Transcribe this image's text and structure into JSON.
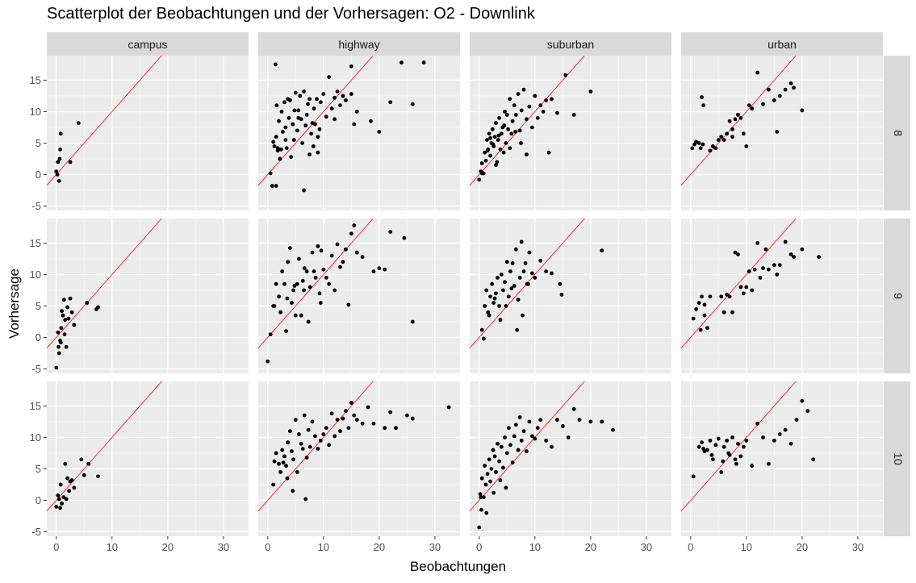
{
  "chart_data": {
    "type": "scatter",
    "title": "Scatterplot der Beobachtungen und der Vorhersagen: O2 - Downlink",
    "xlabel": "Beobachtungen",
    "ylabel": "Vorhersage",
    "xlim": [
      -1.7,
      34.5
    ],
    "ylim": [
      -5.7,
      18.9
    ],
    "x_ticks": [
      0,
      10,
      20,
      30
    ],
    "y_ticks": [
      -5,
      0,
      5,
      10,
      15
    ],
    "grid": true,
    "reference_line": {
      "type": "identity",
      "color": "#ff0000"
    },
    "point_color": "#000000",
    "facet_cols": [
      "campus",
      "highway",
      "suburban",
      "urban"
    ],
    "facet_rows": [
      "8",
      "9",
      "10"
    ],
    "panels": [
      {
        "row": "8",
        "col": "campus",
        "x": [
          0,
          0.2,
          0.5,
          0.3,
          0.6,
          0.7,
          0.8,
          4,
          2.5
        ],
        "y": [
          0.5,
          0,
          -1,
          2,
          2.5,
          4,
          6.5,
          8.2,
          2
        ]
      },
      {
        "row": "8",
        "col": "highway",
        "x": [
          0.5,
          0.8,
          1,
          1.2,
          1.4,
          1.5,
          1.6,
          1.8,
          2,
          2.2,
          2.4,
          2.5,
          2.7,
          3,
          3.2,
          3.4,
          3.6,
          3.8,
          4,
          4.2,
          4.5,
          4.7,
          5,
          5.3,
          5.5,
          5.8,
          6,
          6.2,
          6.5,
          6.8,
          7,
          7.2,
          7.5,
          7.8,
          8,
          8.3,
          8.5,
          8.8,
          9,
          9.3,
          9.5,
          10,
          10.5,
          11,
          11.5,
          12,
          12.5,
          13,
          13.5,
          14,
          15,
          15.5,
          16,
          18.5,
          20,
          22,
          24,
          26,
          28,
          6.5,
          1.5,
          1.8,
          2.2,
          3.2,
          5.5,
          7.5,
          9,
          12,
          15,
          4.8,
          8.2
        ],
        "y": [
          0.2,
          -1.8,
          5.2,
          4.5,
          17.5,
          6,
          11,
          3.8,
          8.5,
          2.5,
          4,
          10,
          6.8,
          11.5,
          7.5,
          4.2,
          12,
          9,
          11.8,
          2.8,
          8,
          5.5,
          13,
          7,
          10.2,
          12.5,
          8.8,
          5,
          13.2,
          7.8,
          9.5,
          11.2,
          12,
          6.5,
          8.2,
          10.5,
          8,
          12,
          3.5,
          7.2,
          11.5,
          12.8,
          9.2,
          15.5,
          10.5,
          12.2,
          13.2,
          11,
          12.5,
          11.8,
          17.2,
          8,
          10,
          8.5,
          6.8,
          11.5,
          17.8,
          11.2,
          17.8,
          -2.5,
          -1.8,
          4.2,
          2.5,
          5.5,
          9,
          3.2,
          6,
          8.8,
          12.8,
          10.2,
          4.5
        ]
      },
      {
        "row": "8",
        "col": "suburban",
        "x": [
          0,
          0.3,
          0.5,
          0.8,
          1,
          1.2,
          1.4,
          1.6,
          1.8,
          2,
          2.2,
          2.4,
          2.6,
          2.8,
          3,
          3.2,
          3.4,
          3.6,
          3.8,
          4,
          4.2,
          4.4,
          4.6,
          4.8,
          5,
          5.2,
          5.5,
          5.8,
          6,
          6.3,
          6.6,
          7,
          7.3,
          7.6,
          8,
          8.5,
          9,
          9.5,
          10,
          10.5,
          11,
          11.5,
          12,
          12.5,
          13,
          14,
          15.5,
          17,
          20,
          0.5,
          1.5,
          2.5,
          3.5,
          4.5,
          5.5,
          6.5,
          7.5,
          8.5,
          3,
          2
        ],
        "y": [
          -0.8,
          0.5,
          1.8,
          0.2,
          3.5,
          2.2,
          5.5,
          4,
          6.5,
          3,
          5,
          7.2,
          4.5,
          6,
          8.2,
          2,
          5.5,
          9,
          4,
          6.5,
          7.5,
          3.5,
          10,
          5,
          9.5,
          7.2,
          12,
          6.5,
          8.5,
          11,
          9.5,
          12.8,
          7,
          10.2,
          13.5,
          8.8,
          10.8,
          7.5,
          12.5,
          9,
          11,
          10,
          11.8,
          3.5,
          12,
          9.8,
          15.8,
          9.5,
          13.2,
          0.2,
          3.8,
          4.8,
          6.2,
          7.8,
          4.2,
          6.8,
          5,
          3.2,
          1.5,
          5.8
        ]
      },
      {
        "row": "8",
        "col": "urban",
        "x": [
          0.3,
          0.7,
          1,
          1.5,
          2,
          2.3,
          3.5,
          4,
          4.5,
          5,
          5.5,
          6,
          6.5,
          7,
          7.5,
          8,
          8.5,
          9,
          9.5,
          10,
          10.5,
          11,
          12,
          13,
          14,
          15,
          16,
          17,
          18,
          18.5,
          20,
          1.8,
          2.2,
          15.5,
          7.5
        ],
        "y": [
          4.2,
          4.8,
          5.2,
          5,
          12.3,
          11,
          3.8,
          4.5,
          4.2,
          5.5,
          6,
          5.5,
          6.5,
          8.5,
          6,
          8.8,
          9.5,
          9,
          6.5,
          4.5,
          11,
          10.5,
          16.2,
          11.2,
          13.5,
          11.8,
          12.5,
          13.5,
          14.5,
          13.8,
          10.2,
          4.2,
          4.8,
          6.8,
          7.2
        ]
      },
      {
        "row": "9",
        "col": "campus",
        "x": [
          0,
          0.3,
          0.5,
          0.7,
          0.9,
          1,
          1.2,
          1.4,
          1.6,
          1.8,
          2,
          2.2,
          2.5,
          2.8,
          3.2,
          5.5,
          7.2,
          7.5,
          0.4,
          0.8,
          1.5
        ],
        "y": [
          -4.8,
          0.8,
          -2.5,
          -0.5,
          1.5,
          4.2,
          3.5,
          6,
          2.8,
          -1.5,
          4.8,
          3,
          6.2,
          4,
          2,
          5.5,
          4.5,
          4.8,
          -1.5,
          -0.8,
          0.5
        ]
      },
      {
        "row": "9",
        "col": "highway",
        "x": [
          0,
          0.5,
          1,
          1.5,
          2,
          2.3,
          2.6,
          3,
          3.3,
          3.6,
          4,
          4.3,
          4.6,
          5,
          5.3,
          5.6,
          6,
          6.3,
          6.6,
          7,
          7.3,
          7.6,
          8,
          8.3,
          8.6,
          9,
          9.3,
          9.6,
          10,
          10.5,
          11,
          11.5,
          12,
          12.5,
          13,
          13.5,
          14,
          14.5,
          15,
          15.5,
          16,
          17,
          19,
          20,
          21,
          22,
          24.5,
          26,
          1.2,
          3.5,
          6.5,
          9.5,
          4.8
        ],
        "y": [
          -3.8,
          0.5,
          5,
          8.5,
          6.5,
          4,
          10.5,
          8.5,
          1,
          12,
          14.2,
          5.5,
          7.5,
          3.5,
          8.5,
          12.5,
          3.5,
          9,
          11,
          10.5,
          2.5,
          8,
          13.5,
          10.5,
          9.5,
          14.5,
          7,
          13.8,
          10.8,
          9.5,
          8.5,
          13,
          7.5,
          14.8,
          11.2,
          12,
          14,
          5.2,
          16.5,
          17.8,
          13.5,
          12.8,
          10.5,
          11,
          10.8,
          16.8,
          15.8,
          2.5,
          5,
          6.2,
          7.5,
          5.5,
          8.2
        ]
      },
      {
        "row": "9",
        "col": "suburban",
        "x": [
          0.5,
          1,
          1.3,
          1.6,
          2,
          2.3,
          2.6,
          3,
          3.3,
          3.6,
          4,
          4.3,
          4.6,
          5,
          5.3,
          5.6,
          6,
          6.3,
          6.6,
          7,
          7.3,
          7.6,
          8,
          8.3,
          8.6,
          9,
          9.5,
          10,
          11,
          12,
          13,
          14.5,
          22,
          0.8,
          1.8,
          2.8,
          3.8,
          4.8,
          5.8,
          6.8,
          7.8,
          8.8,
          14.8
        ],
        "y": [
          1.2,
          5,
          7.5,
          4,
          6.5,
          8.5,
          5.5,
          7,
          9.5,
          5,
          10,
          7.5,
          8.8,
          12,
          6.5,
          10.5,
          11.8,
          8.2,
          14,
          6,
          9.5,
          15.2,
          10.5,
          11.8,
          8.5,
          13.5,
          10.2,
          9.5,
          12.2,
          10.5,
          10.2,
          8.5,
          13.8,
          -0.2,
          3.5,
          6.2,
          2.8,
          5,
          7.8,
          1.2,
          3.5,
          8.5,
          6.8
        ]
      },
      {
        "row": "9",
        "col": "urban",
        "x": [
          0.5,
          1,
          1.5,
          2,
          2.5,
          3,
          3.5,
          5.5,
          6,
          6.5,
          7,
          7.5,
          8,
          8.5,
          9,
          9.5,
          10,
          10.5,
          11,
          11.5,
          12,
          12.5,
          13,
          13.5,
          14,
          15,
          15.5,
          16,
          17,
          18,
          18.5,
          20,
          23,
          1.8,
          2.5
        ],
        "y": [
          3,
          4.5,
          5.5,
          6.5,
          3.5,
          1.5,
          6.5,
          6.5,
          4,
          6.8,
          6.5,
          4,
          13.5,
          13.2,
          8,
          7,
          8,
          10.5,
          7.5,
          10.8,
          15,
          9.5,
          11,
          14,
          10.8,
          11.5,
          10,
          11.5,
          15.2,
          13.2,
          12.8,
          14,
          12.8,
          1.2,
          5.2
        ]
      },
      {
        "row": "10",
        "col": "campus",
        "x": [
          0,
          0.3,
          0.5,
          0.8,
          1,
          1.3,
          1.6,
          2,
          2.3,
          2.8,
          3.2,
          4.5,
          5,
          5.8,
          7.5,
          0.7,
          1.8,
          2.5
        ],
        "y": [
          -1,
          0.8,
          0.2,
          2.5,
          -0.5,
          0.5,
          5.8,
          3.5,
          1.5,
          3.2,
          2,
          6.5,
          4,
          5.8,
          3.8,
          -1.2,
          0.2,
          3
        ]
      },
      {
        "row": "10",
        "col": "highway",
        "x": [
          1,
          1.2,
          1.5,
          2,
          2.3,
          2.6,
          3,
          3.3,
          3.6,
          4,
          4.3,
          4.6,
          5,
          5.3,
          5.6,
          6,
          6.3,
          6.6,
          7,
          7.3,
          7.6,
          8,
          8.5,
          9,
          9.5,
          10,
          10.5,
          11,
          11.5,
          12,
          12.5,
          13,
          13.5,
          14,
          14.5,
          15,
          15.5,
          16,
          17,
          18,
          19,
          21,
          22,
          23,
          25,
          26,
          32.5,
          4.5,
          6.8,
          3.5,
          2.8
        ],
        "y": [
          2.5,
          6.2,
          7.5,
          5.8,
          4.5,
          8,
          7,
          5.5,
          9.2,
          11,
          7.8,
          6.5,
          12.8,
          4.5,
          10.5,
          9,
          8.2,
          13.5,
          6.8,
          11.2,
          8.5,
          12.5,
          10.2,
          8.2,
          9.5,
          10.5,
          11.5,
          8.8,
          13.8,
          10.2,
          12.8,
          11,
          13,
          14.2,
          11.5,
          15.5,
          13.5,
          12.8,
          12.2,
          14.8,
          12.2,
          11.5,
          14,
          11.5,
          13.5,
          13,
          14.8,
          1.5,
          0.2,
          3.5,
          6
        ]
      },
      {
        "row": "10",
        "col": "suburban",
        "x": [
          0,
          0.2,
          0.5,
          0.8,
          1,
          1.2,
          1.5,
          1.8,
          2,
          2.2,
          2.5,
          2.8,
          3,
          3.3,
          3.6,
          4,
          4.3,
          4.6,
          5,
          5.3,
          5.6,
          6,
          6.3,
          6.6,
          7,
          7.3,
          7.6,
          8,
          8.5,
          9,
          9.5,
          10,
          10.5,
          11,
          12,
          13,
          14,
          15,
          16,
          17,
          18,
          20,
          22,
          24,
          0.4,
          1.3,
          2.6,
          3.8,
          4.8,
          0.3
        ],
        "y": [
          -4.3,
          1,
          3.5,
          0.5,
          5.5,
          2.5,
          4.2,
          6.5,
          3,
          5,
          8,
          7,
          4.5,
          9,
          6.2,
          8.5,
          5.2,
          10,
          7.5,
          11.5,
          8.8,
          6,
          10.2,
          12,
          8,
          13.2,
          9.5,
          11,
          7.8,
          12.5,
          10.2,
          9.8,
          11.5,
          12.8,
          9.5,
          8.5,
          12.8,
          11.8,
          10,
          14.5,
          12.8,
          12.5,
          12.5,
          11.2,
          -1.5,
          -2,
          1.2,
          3.2,
          2,
          0.5
        ]
      },
      {
        "row": "10",
        "col": "urban",
        "x": [
          0.5,
          1.5,
          2,
          2.5,
          3,
          3.5,
          4,
          4.5,
          5,
          5.5,
          6,
          6.5,
          7,
          7.5,
          8,
          8.5,
          9,
          9.5,
          10,
          11,
          12,
          13,
          14,
          15,
          16,
          17,
          18,
          19,
          20,
          21,
          22,
          2.3,
          3.8,
          5.8,
          8.2,
          6.8
        ],
        "y": [
          3.8,
          8.5,
          9.2,
          7.8,
          8,
          9.5,
          6.5,
          8.8,
          9.8,
          4.5,
          8.5,
          9.5,
          7.2,
          10,
          6.5,
          9,
          7,
          8.5,
          9.5,
          5.5,
          12.2,
          10,
          5.8,
          9.5,
          10.5,
          11.2,
          9,
          12.8,
          15.8,
          14.2,
          6.5,
          8.2,
          7.2,
          6.2,
          5.8,
          7.5
        ]
      }
    ]
  }
}
